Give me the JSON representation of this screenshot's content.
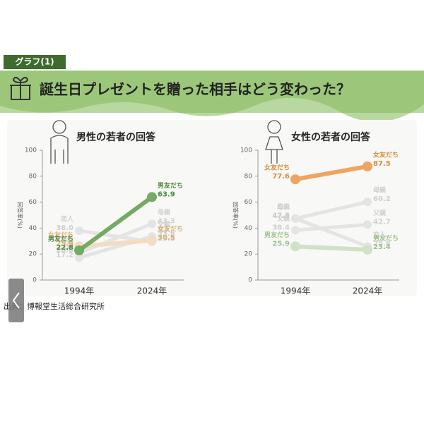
{
  "header": {
    "tag": "グラフ(1)",
    "title": "誕生日プレゼントを贈った相手はどう変わった？"
  },
  "source": "出典：博報堂生活総合研究所",
  "chart_data": [
    {
      "type": "line",
      "title": "男性の若者の回答",
      "y_label": "回答率(%)",
      "categories": [
        "1994年",
        "2024年"
      ],
      "ylim": [
        0,
        100
      ],
      "yticks": [
        0,
        20,
        40,
        60,
        80,
        100
      ],
      "series": [
        {
          "name": "恋人",
          "color": "#e4e4e4",
          "label_color": "#cfcfcf",
          "values": [
            38.0,
            29.5
          ],
          "value_labels": [
            "38.0",
            "29.5"
          ]
        },
        {
          "name": "母親",
          "color": "#e4e4e4",
          "label_color": "#cfcfcf",
          "values": [
            20.8,
            43.3
          ],
          "value_labels": [
            "20.8",
            "43.3"
          ]
        },
        {
          "name": "父親",
          "color": "#e4e4e4",
          "label_color": "#cfcfcf",
          "values": [
            17.2,
            33.6
          ],
          "value_labels": [
            "17.2",
            "33.6"
          ]
        },
        {
          "name": "女友だち",
          "color": "#f2dcc4",
          "label_color": "#e2ad74",
          "values": [
            25.9,
            30.5
          ],
          "value_labels": [
            "25.9",
            "30.5"
          ]
        },
        {
          "name": "男友だち",
          "color": "#74aa63",
          "label_color": "#4f8a3e",
          "values": [
            22.8,
            63.9
          ],
          "value_labels": [
            "22.8",
            "63.9"
          ]
        }
      ]
    },
    {
      "type": "line",
      "title": "女性の若者の回答",
      "y_label": "回答率(%)",
      "categories": [
        "1994年",
        "2024年"
      ],
      "ylim": [
        0,
        100
      ],
      "yticks": [
        0,
        20,
        40,
        60,
        80,
        100
      ],
      "series": [
        {
          "name": "恋人",
          "color": "#e4e4e4",
          "label_color": "#cfcfcf",
          "values": [
            47.5,
            25.8
          ],
          "value_labels": [
            "47.5",
            "25.8"
          ]
        },
        {
          "name": "母親",
          "color": "#e4e4e4",
          "label_color": "#cfcfcf",
          "values": [
            47.3,
            60.2
          ],
          "value_labels": [
            "47.3",
            "60.2"
          ]
        },
        {
          "name": "父親",
          "color": "#e4e4e4",
          "label_color": "#cfcfcf",
          "values": [
            38.4,
            42.7
          ],
          "value_labels": [
            "38.4",
            "42.7"
          ]
        },
        {
          "name": "男友だち",
          "color": "#cfe1c6",
          "label_color": "#9cc28c",
          "values": [
            25.9,
            23.4
          ],
          "value_labels": [
            "25.9",
            "23.4"
          ]
        },
        {
          "name": "女友だち",
          "color": "#eea55f",
          "label_color": "#d98b3e",
          "values": [
            77.6,
            87.5
          ],
          "value_labels": [
            "77.6",
            "87.5"
          ]
        }
      ]
    }
  ]
}
